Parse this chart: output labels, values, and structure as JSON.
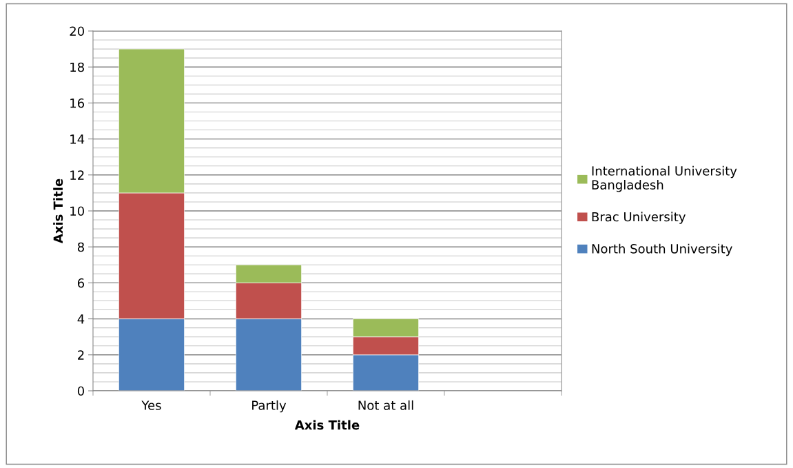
{
  "chart_data": {
    "type": "bar",
    "stacked": true,
    "xlabel": "Axis Title",
    "ylabel": "Axis Title",
    "categories": [
      "Yes",
      "Partly",
      "Not at all",
      null
    ],
    "series": [
      {
        "name": "North South University",
        "color": "#4f81bd",
        "values": [
          4,
          4,
          2,
          null
        ]
      },
      {
        "name": "Brac University",
        "color": "#c0504d",
        "values": [
          7,
          2,
          1,
          null
        ]
      },
      {
        "name": "International University Bangladesh",
        "color": "#9bbb59",
        "values": [
          8,
          1,
          1,
          null
        ]
      }
    ],
    "ylim": [
      0,
      20
    ],
    "yticks": [
      0,
      2,
      4,
      6,
      8,
      10,
      12,
      14,
      16,
      18,
      20
    ],
    "grid": "y",
    "legend": "right"
  }
}
